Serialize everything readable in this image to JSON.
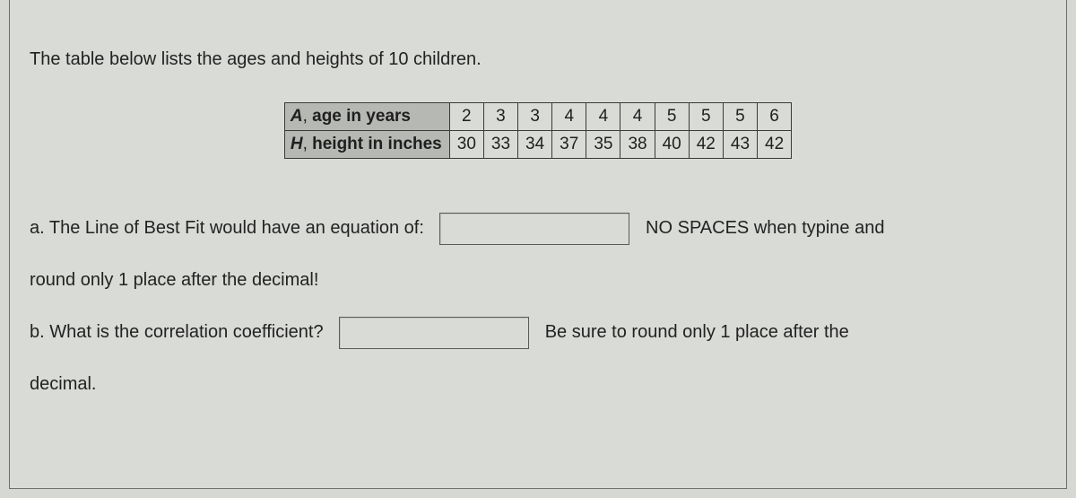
{
  "intro": "The table below lists the ages and heights of 10 children.",
  "table": {
    "rows": [
      {
        "var": "A",
        "label": "age in years",
        "values": [
          "2",
          "3",
          "3",
          "4",
          "4",
          "4",
          "5",
          "5",
          "5",
          "6"
        ]
      },
      {
        "var": "H",
        "label": "height in inches",
        "values": [
          "30",
          "33",
          "34",
          "37",
          "35",
          "38",
          "40",
          "42",
          "43",
          "42"
        ]
      }
    ]
  },
  "qa": {
    "prefix": "a.  The Line of Best Fit would have an  equation of:",
    "suffix": "NO SPACES when typine and",
    "cont": "round only 1 place after the decimal!"
  },
  "qb": {
    "prefix": "b.  What is the correlation coefficient?",
    "suffix": "Be sure to round only 1 place after the",
    "cont": "decimal."
  }
}
